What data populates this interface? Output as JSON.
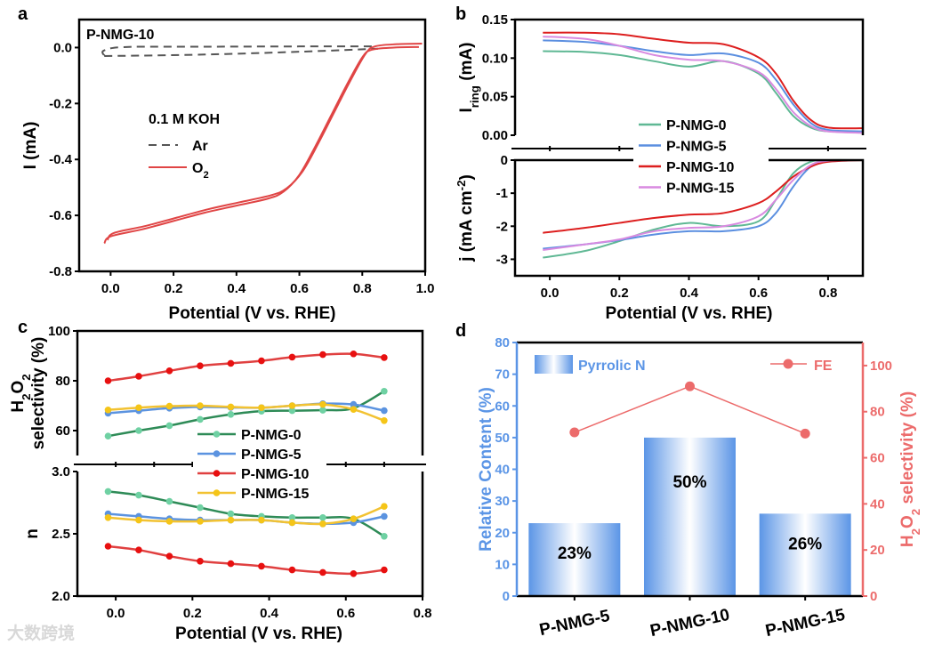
{
  "chart_data": [
    {
      "panel": "a",
      "type": "line",
      "annotation": "P-NMG-10",
      "legend_title": "0.1 M KOH",
      "xlabel": "Potential (V vs. RHE)",
      "ylabel": "I (mA)",
      "xlim": [
        -0.1,
        1.0
      ],
      "ylim": [
        -0.8,
        0.1
      ],
      "xticks": [
        0.0,
        0.2,
        0.4,
        0.6,
        0.8,
        1.0
      ],
      "xtick_labels": [
        "0.0",
        "0.2",
        "0.4",
        "0.6",
        "0.8",
        "1.0"
      ],
      "yticks": [
        0.0,
        -0.2,
        -0.4,
        -0.6,
        -0.8
      ],
      "ytick_labels": [
        "0.0",
        "-0.2",
        "-0.4",
        "-0.6",
        "-0.8"
      ],
      "series": [
        {
          "name": "Ar",
          "label": [
            {
              "t": "Ar"
            }
          ],
          "color": "#555555",
          "dash": true,
          "x": [
            0.83,
            0.6,
            0.3,
            0.05,
            -0.02,
            -0.02,
            0.0,
            0.3,
            0.6,
            0.85
          ],
          "y": [
            0.004,
            0.004,
            0.003,
            0.002,
            -0.01,
            -0.028,
            -0.03,
            -0.025,
            -0.015,
            -0.004
          ]
        },
        {
          "name": "O2",
          "label": [
            {
              "t": "O"
            },
            {
              "t": "2",
              "sub": true
            }
          ],
          "color": "#e04545",
          "dash": false,
          "x": [
            -0.02,
            0.0,
            0.1,
            0.2,
            0.3,
            0.4,
            0.5,
            0.55,
            0.6,
            0.65,
            0.7,
            0.75,
            0.8,
            0.83,
            0.9,
            0.98
          ],
          "y": [
            -0.7,
            -0.675,
            -0.65,
            -0.62,
            -0.59,
            -0.565,
            -0.54,
            -0.515,
            -0.455,
            -0.355,
            -0.245,
            -0.135,
            -0.035,
            -0.008,
            0.0,
            0.002
          ]
        }
      ]
    },
    {
      "panel": "b",
      "type": "line",
      "xlabel": "Potential (V vs. RHE)",
      "xlim": [
        -0.1,
        0.9
      ],
      "xticks": [
        0.0,
        0.2,
        0.4,
        0.6,
        0.8
      ],
      "xtick_labels": [
        "0.0",
        "0.2",
        "0.4",
        "0.6",
        "0.8"
      ],
      "top": {
        "ylabel": [
          {
            "t": "I"
          },
          {
            "t": "ring",
            "sub": true
          },
          {
            "t": " (mA)"
          }
        ],
        "ylim": [
          0,
          0.15
        ],
        "yticks": [
          0.0,
          0.05,
          0.1,
          0.15
        ],
        "ytick_labels": [
          "0.00",
          "0.05",
          "0.10",
          "0.15"
        ]
      },
      "bottom": {
        "ylabel": [
          {
            "t": "j (mA cm"
          },
          {
            "t": "-2",
            "sup": true
          },
          {
            "t": ")"
          }
        ],
        "ylim": [
          -3.5,
          0
        ],
        "yticks": [
          0,
          -1,
          -2,
          -3
        ],
        "ytick_labels": [
          "0",
          "-1",
          "-2",
          "-3"
        ]
      },
      "x": [
        -0.02,
        0.1,
        0.2,
        0.3,
        0.4,
        0.5,
        0.6,
        0.65,
        0.7,
        0.75,
        0.8,
        0.9
      ],
      "series": [
        {
          "name": "P-NMG-0",
          "color": "#5fb894",
          "ring": [
            0.109,
            0.108,
            0.104,
            0.096,
            0.089,
            0.096,
            0.08,
            0.055,
            0.025,
            0.01,
            0.005,
            0.004
          ],
          "j": [
            -2.95,
            -2.75,
            -2.45,
            -2.1,
            -1.9,
            -2.0,
            -1.85,
            -1.2,
            -0.4,
            -0.05,
            0,
            0
          ]
        },
        {
          "name": "P-NMG-5",
          "color": "#5b8fe0",
          "ring": [
            0.123,
            0.121,
            0.116,
            0.109,
            0.104,
            0.106,
            0.094,
            0.072,
            0.04,
            0.016,
            0.007,
            0.005
          ],
          "j": [
            -2.68,
            -2.55,
            -2.42,
            -2.25,
            -2.15,
            -2.15,
            -2.0,
            -1.6,
            -0.8,
            -0.2,
            -0.02,
            0
          ]
        },
        {
          "name": "P-NMG-10",
          "color": "#dd1f1f",
          "ring": [
            0.133,
            0.133,
            0.131,
            0.125,
            0.12,
            0.118,
            0.101,
            0.08,
            0.045,
            0.02,
            0.01,
            0.009
          ],
          "j": [
            -2.2,
            -2.05,
            -1.9,
            -1.75,
            -1.65,
            -1.6,
            -1.3,
            -0.95,
            -0.5,
            -0.2,
            -0.05,
            0
          ]
        },
        {
          "name": "P-NMG-15",
          "color": "#d88ae0",
          "ring": [
            0.128,
            0.125,
            0.116,
            0.104,
            0.098,
            0.096,
            0.082,
            0.06,
            0.03,
            0.012,
            0.005,
            0.003
          ],
          "j": [
            -2.72,
            -2.55,
            -2.4,
            -2.15,
            -2.05,
            -2.0,
            -1.7,
            -1.2,
            -0.6,
            -0.15,
            -0.02,
            0
          ]
        }
      ]
    },
    {
      "panel": "c",
      "type": "line",
      "xlabel": "Potential (V vs. RHE)",
      "xlim": [
        -0.1,
        0.8
      ],
      "xticks": [
        0.0,
        0.2,
        0.4,
        0.6,
        0.8
      ],
      "xtick_labels": [
        "0.0",
        "0.2",
        "0.4",
        "0.6",
        "0.8"
      ],
      "top": {
        "ylabel": [
          {
            "t": "H"
          },
          {
            "t": "2",
            "sub": true
          },
          {
            "t": "O"
          },
          {
            "t": "2",
            "sub": true
          }
        ],
        "ylabel2": "selectivity (%)",
        "ylim": [
          50,
          100
        ],
        "yticks": [
          60,
          80,
          100
        ],
        "ytick_labels": [
          "60",
          "80",
          "100"
        ]
      },
      "bottom": {
        "ylabel": [
          {
            "t": "n"
          }
        ],
        "ylim": [
          2.0,
          3.0
        ],
        "yticks": [
          2.0,
          2.5,
          3.0
        ],
        "ytick_labels": [
          "2.0",
          "2.5",
          "3.0"
        ]
      },
      "x": [
        -0.02,
        0.06,
        0.14,
        0.22,
        0.3,
        0.38,
        0.46,
        0.54,
        0.62,
        0.7
      ],
      "series": [
        {
          "name": "P-NMG-0",
          "color": "#2e8b57",
          "marker_color": "#6fd1a3",
          "selectivity": [
            57.8,
            60,
            62,
            64.5,
            66.5,
            67.8,
            68,
            68.2,
            69,
            75.8
          ],
          "n": [
            2.84,
            2.81,
            2.76,
            2.71,
            2.66,
            2.64,
            2.63,
            2.63,
            2.62,
            2.48
          ]
        },
        {
          "name": "P-NMG-5",
          "color": "#5b93e0",
          "marker_color": "#5b93e0",
          "selectivity": [
            67,
            68,
            69,
            69.5,
            69.3,
            69.2,
            70,
            70.8,
            70.5,
            68
          ],
          "n": [
            2.66,
            2.64,
            2.62,
            2.61,
            2.61,
            2.61,
            2.59,
            2.58,
            2.59,
            2.64
          ]
        },
        {
          "name": "P-NMG-10",
          "color": "#e04040",
          "marker_color": "#e81010",
          "selectivity": [
            80,
            81.8,
            84,
            86,
            87,
            88,
            89.5,
            90.5,
            90.8,
            89.3
          ],
          "n": [
            2.4,
            2.37,
            2.32,
            2.28,
            2.26,
            2.24,
            2.21,
            2.19,
            2.18,
            2.21
          ]
        },
        {
          "name": "P-NMG-15",
          "color": "#f2c232",
          "marker_color": "#f5c518",
          "selectivity": [
            68.3,
            69.2,
            69.8,
            70,
            69.5,
            69.2,
            70,
            70.5,
            68.5,
            64
          ],
          "n": [
            2.63,
            2.61,
            2.6,
            2.6,
            2.61,
            2.61,
            2.59,
            2.58,
            2.62,
            2.72
          ]
        }
      ]
    },
    {
      "panel": "d",
      "type": "bar",
      "categories": [
        "P-NMG-5",
        "P-NMG-10",
        "P-NMG-15"
      ],
      "bar_series": {
        "name": "Pyrrolic N",
        "values": [
          23,
          50,
          26
        ],
        "labels": [
          "23%",
          "50%",
          "26%"
        ],
        "color": "#5b95e6"
      },
      "line_series": {
        "name": "FE",
        "values": [
          71,
          91,
          70.5
        ],
        "color": "#ec6b6b"
      },
      "ylabel": "Relative Content (%)",
      "ylabel_right": [
        {
          "t": "H"
        },
        {
          "t": "2",
          "sub": true
        },
        {
          "t": "O"
        },
        {
          "t": "2",
          "sub": true
        },
        {
          "t": " selectivity (%)"
        }
      ],
      "ylim": [
        0,
        80
      ],
      "ylim_right": [
        0,
        110
      ],
      "yticks": [
        0,
        10,
        20,
        30,
        40,
        50,
        60,
        70,
        80
      ],
      "ytick_labels": [
        "0",
        "10",
        "20",
        "30",
        "40",
        "50",
        "60",
        "70",
        "80"
      ],
      "yticks_right": [
        0,
        20,
        40,
        60,
        80,
        100
      ],
      "ytick_labels_right": [
        "0",
        "20",
        "40",
        "60",
        "80",
        "100"
      ]
    }
  ],
  "panel_letters": [
    "a",
    "b",
    "c",
    "d"
  ],
  "watermark": "大数跨境"
}
